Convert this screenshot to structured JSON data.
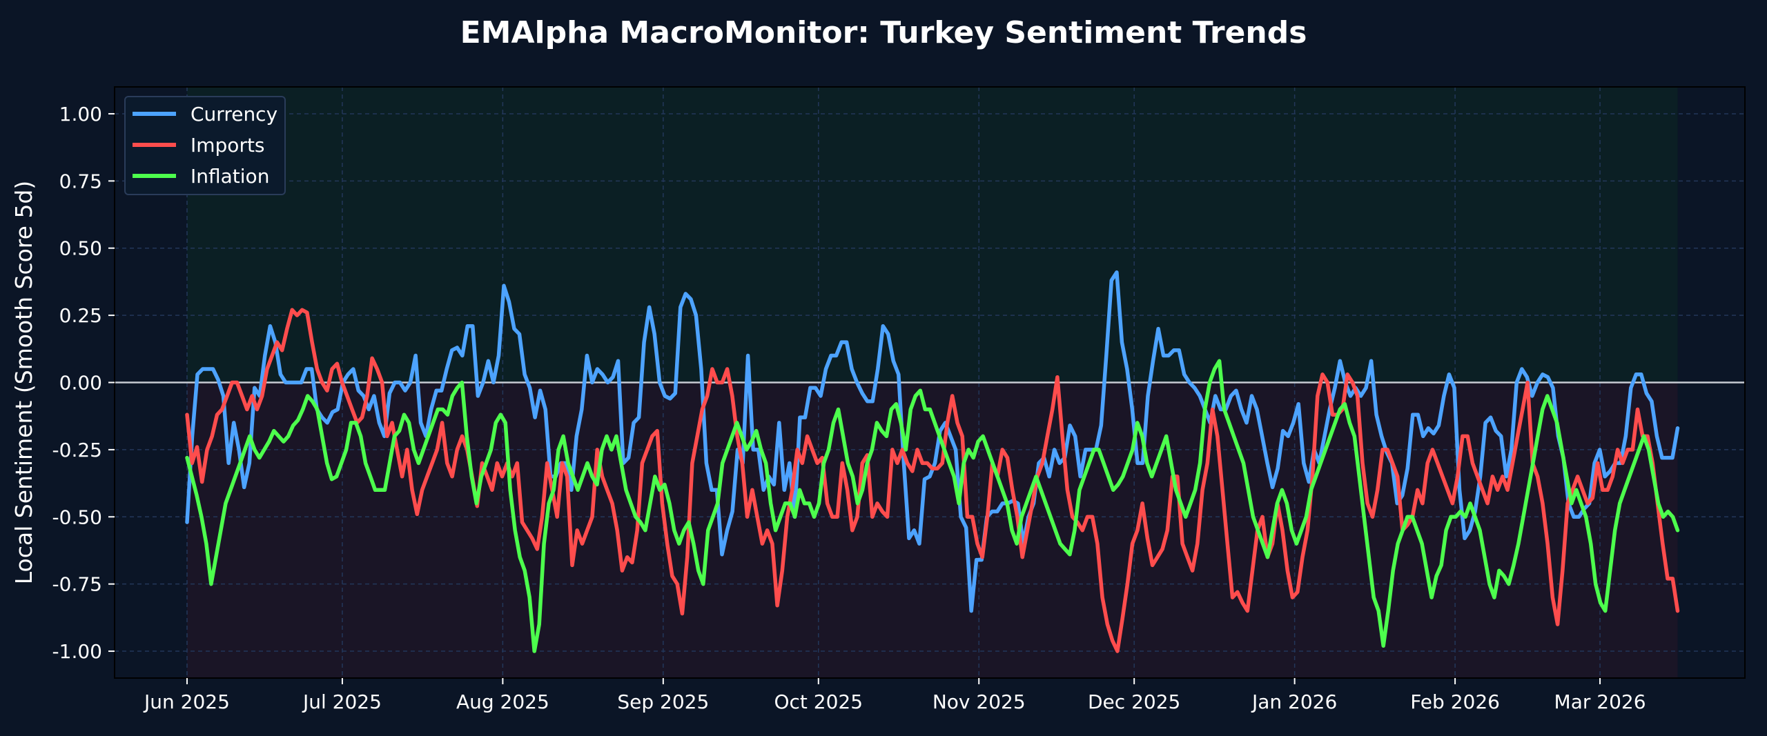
{
  "chart_data": {
    "type": "line",
    "title": "EMAlpha MacroMonitor: Turkey Sentiment Trends",
    "xlabel": "",
    "ylabel": "Local Sentiment (Smooth Score 5d)",
    "ylim": [
      -1.1,
      1.1
    ],
    "xlim": [
      "2025-05-18",
      "2026-03-29"
    ],
    "x_start": "2025-06-01",
    "x_end": "2026-03-16",
    "y_ticks": [
      "1.00",
      "0.75",
      "0.50",
      "0.25",
      "0.00",
      "-0.25",
      "-0.50",
      "-0.75",
      "-1.00"
    ],
    "y_tick_values": [
      1.0,
      0.75,
      0.5,
      0.25,
      0.0,
      -0.25,
      -0.5,
      -0.75,
      -1.0
    ],
    "x_tick_labels": [
      "Jun 2025",
      "Jul 2025",
      "Aug 2025",
      "Sep 2025",
      "Oct 2025",
      "Nov 2025",
      "Dec 2025",
      "Jan 2026",
      "Feb 2026",
      "Mar 2026"
    ],
    "x_tick_dates": [
      "2025-06-01",
      "2025-07-01",
      "2025-08-01",
      "2025-09-01",
      "2025-10-01",
      "2025-11-01",
      "2025-12-01",
      "2026-01-01",
      "2026-02-01",
      "2026-03-01"
    ],
    "grid": true,
    "legend_position": "top-left",
    "zero_line": true,
    "series": [
      {
        "name": "Currency",
        "color": "#4da3ff",
        "values": [
          -0.52,
          -0.2,
          0.03,
          0.05,
          0.05,
          0.05,
          0.01,
          -0.05,
          -0.3,
          -0.15,
          -0.25,
          -0.39,
          -0.3,
          -0.02,
          -0.05,
          0.1,
          0.21,
          0.15,
          0.03,
          0.0,
          0.0,
          0.0,
          0.0,
          0.05,
          0.05,
          -0.1,
          -0.13,
          -0.15,
          -0.11,
          -0.1,
          0.0,
          0.03,
          0.05,
          -0.03,
          -0.05,
          -0.1,
          -0.05,
          -0.15,
          -0.2,
          -0.04,
          0.0,
          0.0,
          -0.03,
          0.0,
          0.1,
          -0.15,
          -0.2,
          -0.1,
          -0.03,
          -0.03,
          0.05,
          0.12,
          0.13,
          0.1,
          0.21,
          0.21,
          -0.05,
          0.0,
          0.08,
          0.0,
          0.1,
          0.36,
          0.3,
          0.2,
          0.18,
          0.03,
          -0.02,
          -0.13,
          -0.03,
          -0.1,
          -0.35,
          -0.35,
          -0.3,
          -0.3,
          -0.4,
          -0.2,
          -0.1,
          0.1,
          0.0,
          0.05,
          0.03,
          0.0,
          0.02,
          0.08,
          -0.3,
          -0.28,
          -0.15,
          -0.13,
          0.15,
          0.28,
          0.18,
          0.0,
          -0.05,
          -0.06,
          -0.04,
          0.28,
          0.33,
          0.31,
          0.25,
          0.05,
          -0.3,
          -0.4,
          -0.4,
          -0.64,
          -0.55,
          -0.48,
          -0.25,
          -0.3,
          0.1,
          -0.25,
          -0.25,
          -0.4,
          -0.35,
          -0.38,
          -0.15,
          -0.4,
          -0.3,
          -0.5,
          -0.13,
          -0.13,
          -0.02,
          -0.02,
          -0.05,
          0.05,
          0.1,
          0.1,
          0.15,
          0.15,
          0.05,
          0.0,
          -0.04,
          -0.07,
          -0.07,
          0.05,
          0.21,
          0.18,
          0.08,
          0.03,
          -0.3,
          -0.58,
          -0.55,
          -0.6,
          -0.36,
          -0.35,
          -0.3,
          -0.18,
          -0.15,
          -0.2,
          -0.25,
          -0.5,
          -0.54,
          -0.85,
          -0.66,
          -0.66,
          -0.5,
          -0.48,
          -0.48,
          -0.45,
          -0.45,
          -0.44,
          -0.45,
          -0.6,
          -0.5,
          -0.45,
          -0.3,
          -0.28,
          -0.35,
          -0.25,
          -0.3,
          -0.28,
          -0.16,
          -0.2,
          -0.35,
          -0.25,
          -0.25,
          -0.25,
          -0.16,
          0.1,
          0.38,
          0.41,
          0.15,
          0.05,
          -0.1,
          -0.3,
          -0.3,
          -0.05,
          0.08,
          0.2,
          0.1,
          0.1,
          0.12,
          0.12,
          0.03,
          0.0,
          -0.02,
          -0.05,
          -0.1,
          -0.15,
          -0.05,
          -0.1,
          -0.1,
          -0.05,
          -0.03,
          -0.1,
          -0.15,
          -0.05,
          -0.1,
          -0.2,
          -0.3,
          -0.39,
          -0.32,
          -0.18,
          -0.2,
          -0.15,
          -0.08,
          -0.3,
          -0.37,
          -0.25,
          -0.3,
          -0.2,
          -0.1,
          -0.02,
          0.08,
          0.0,
          -0.05,
          -0.02,
          -0.05,
          -0.02,
          0.08,
          -0.12,
          -0.2,
          -0.26,
          -0.3,
          -0.45,
          -0.42,
          -0.32,
          -0.12,
          -0.12,
          -0.2,
          -0.17,
          -0.19,
          -0.16,
          -0.05,
          0.03,
          -0.02,
          -0.4,
          -0.58,
          -0.55,
          -0.48,
          -0.35,
          -0.15,
          -0.13,
          -0.18,
          -0.2,
          -0.35,
          -0.25,
          0.0,
          0.05,
          0.02,
          -0.05,
          0.0,
          0.03,
          0.02,
          -0.02,
          -0.2,
          -0.28,
          -0.45,
          -0.5,
          -0.5,
          -0.47,
          -0.45,
          -0.3,
          -0.25,
          -0.35,
          -0.33,
          -0.3,
          -0.3,
          -0.2,
          -0.02,
          0.03,
          0.03,
          -0.04,
          -0.07,
          -0.2,
          -0.28,
          -0.28,
          -0.28,
          -0.17
        ]
      },
      {
        "name": "Imports",
        "color": "#ff4d4d",
        "values": [
          -0.12,
          -0.3,
          -0.24,
          -0.37,
          -0.25,
          -0.2,
          -0.12,
          -0.1,
          -0.05,
          0.0,
          0.0,
          -0.05,
          -0.1,
          -0.05,
          -0.1,
          -0.05,
          0.05,
          0.1,
          0.15,
          0.12,
          0.2,
          0.27,
          0.25,
          0.27,
          0.26,
          0.15,
          0.05,
          0.0,
          -0.03,
          0.05,
          0.07,
          0.0,
          -0.05,
          -0.1,
          -0.15,
          -0.13,
          -0.05,
          0.09,
          0.05,
          0.0,
          -0.2,
          -0.15,
          -0.25,
          -0.35,
          -0.25,
          -0.4,
          -0.49,
          -0.4,
          -0.35,
          -0.3,
          -0.25,
          -0.15,
          -0.3,
          -0.35,
          -0.25,
          -0.2,
          -0.25,
          -0.35,
          -0.46,
          -0.3,
          -0.35,
          -0.4,
          -0.3,
          -0.35,
          -0.3,
          -0.35,
          -0.3,
          -0.52,
          -0.55,
          -0.58,
          -0.62,
          -0.5,
          -0.3,
          -0.4,
          -0.5,
          -0.3,
          -0.35,
          -0.68,
          -0.55,
          -0.6,
          -0.55,
          -0.5,
          -0.25,
          -0.35,
          -0.4,
          -0.45,
          -0.55,
          -0.7,
          -0.65,
          -0.67,
          -0.55,
          -0.3,
          -0.25,
          -0.2,
          -0.18,
          -0.45,
          -0.6,
          -0.72,
          -0.75,
          -0.86,
          -0.65,
          -0.3,
          -0.2,
          -0.1,
          -0.05,
          0.05,
          0.0,
          0.0,
          0.05,
          -0.05,
          -0.2,
          -0.3,
          -0.5,
          -0.4,
          -0.5,
          -0.6,
          -0.55,
          -0.6,
          -0.83,
          -0.7,
          -0.5,
          -0.4,
          -0.25,
          -0.3,
          -0.2,
          -0.25,
          -0.3,
          -0.28,
          -0.45,
          -0.5,
          -0.5,
          -0.3,
          -0.4,
          -0.55,
          -0.5,
          -0.3,
          -0.27,
          -0.5,
          -0.45,
          -0.48,
          -0.5,
          -0.25,
          -0.3,
          -0.25,
          -0.3,
          -0.33,
          -0.25,
          -0.3,
          -0.3,
          -0.32,
          -0.32,
          -0.3,
          -0.15,
          -0.05,
          -0.15,
          -0.2,
          -0.5,
          -0.5,
          -0.6,
          -0.65,
          -0.5,
          -0.3,
          -0.35,
          -0.25,
          -0.28,
          -0.4,
          -0.5,
          -0.65,
          -0.55,
          -0.45,
          -0.35,
          -0.3,
          -0.2,
          -0.1,
          0.02,
          -0.2,
          -0.4,
          -0.5,
          -0.52,
          -0.55,
          -0.5,
          -0.5,
          -0.6,
          -0.8,
          -0.9,
          -0.96,
          -1.0,
          -0.88,
          -0.75,
          -0.6,
          -0.55,
          -0.45,
          -0.58,
          -0.68,
          -0.65,
          -0.62,
          -0.55,
          -0.35,
          -0.35,
          -0.6,
          -0.65,
          -0.7,
          -0.6,
          -0.4,
          -0.3,
          -0.1,
          -0.2,
          -0.4,
          -0.6,
          -0.8,
          -0.78,
          -0.82,
          -0.85,
          -0.7,
          -0.55,
          -0.5,
          -0.65,
          -0.6,
          -0.45,
          -0.55,
          -0.7,
          -0.8,
          -0.78,
          -0.65,
          -0.55,
          -0.35,
          -0.05,
          0.03,
          0.0,
          -0.12,
          -0.12,
          -0.1,
          0.03,
          0.0,
          -0.05,
          -0.3,
          -0.45,
          -0.5,
          -0.4,
          -0.25,
          -0.25,
          -0.3,
          -0.35,
          -0.55,
          -0.53,
          -0.5,
          -0.4,
          -0.45,
          -0.3,
          -0.25,
          -0.3,
          -0.35,
          -0.4,
          -0.45,
          -0.35,
          -0.2,
          -0.2,
          -0.3,
          -0.35,
          -0.4,
          -0.45,
          -0.35,
          -0.4,
          -0.35,
          -0.4,
          -0.3,
          -0.2,
          -0.1,
          0.0,
          -0.3,
          -0.35,
          -0.45,
          -0.6,
          -0.8,
          -0.9,
          -0.7,
          -0.45,
          -0.4,
          -0.35,
          -0.4,
          -0.45,
          -0.43,
          -0.3,
          -0.4,
          -0.4,
          -0.35,
          -0.25,
          -0.3,
          -0.25,
          -0.25,
          -0.1,
          -0.2,
          -0.2,
          -0.3,
          -0.45,
          -0.6,
          -0.73,
          -0.73,
          -0.85
        ]
      },
      {
        "name": "Inflation",
        "color": "#4dff4d",
        "values": [
          -0.28,
          -0.35,
          -0.42,
          -0.5,
          -0.6,
          -0.75,
          -0.65,
          -0.55,
          -0.45,
          -0.4,
          -0.35,
          -0.3,
          -0.25,
          -0.2,
          -0.25,
          -0.28,
          -0.25,
          -0.22,
          -0.18,
          -0.2,
          -0.22,
          -0.2,
          -0.16,
          -0.14,
          -0.1,
          -0.05,
          -0.07,
          -0.1,
          -0.2,
          -0.3,
          -0.36,
          -0.35,
          -0.3,
          -0.25,
          -0.15,
          -0.15,
          -0.2,
          -0.3,
          -0.35,
          -0.4,
          -0.4,
          -0.4,
          -0.3,
          -0.2,
          -0.18,
          -0.12,
          -0.15,
          -0.25,
          -0.3,
          -0.25,
          -0.2,
          -0.15,
          -0.1,
          -0.1,
          -0.12,
          -0.05,
          -0.02,
          0.0,
          -0.2,
          -0.35,
          -0.45,
          -0.35,
          -0.3,
          -0.25,
          -0.15,
          -0.12,
          -0.15,
          -0.4,
          -0.55,
          -0.65,
          -0.7,
          -0.8,
          -1.0,
          -0.9,
          -0.6,
          -0.45,
          -0.4,
          -0.25,
          -0.2,
          -0.3,
          -0.35,
          -0.4,
          -0.35,
          -0.3,
          -0.35,
          -0.38,
          -0.25,
          -0.2,
          -0.25,
          -0.2,
          -0.3,
          -0.4,
          -0.45,
          -0.5,
          -0.52,
          -0.55,
          -0.45,
          -0.35,
          -0.4,
          -0.38,
          -0.45,
          -0.55,
          -0.6,
          -0.55,
          -0.52,
          -0.6,
          -0.7,
          -0.75,
          -0.55,
          -0.5,
          -0.45,
          -0.3,
          -0.25,
          -0.2,
          -0.15,
          -0.2,
          -0.25,
          -0.22,
          -0.18,
          -0.25,
          -0.3,
          -0.45,
          -0.55,
          -0.5,
          -0.45,
          -0.45,
          -0.5,
          -0.4,
          -0.45,
          -0.45,
          -0.5,
          -0.45,
          -0.3,
          -0.25,
          -0.15,
          -0.1,
          -0.2,
          -0.3,
          -0.35,
          -0.45,
          -0.4,
          -0.3,
          -0.25,
          -0.15,
          -0.18,
          -0.2,
          -0.1,
          -0.08,
          -0.15,
          -0.25,
          -0.1,
          -0.05,
          -0.03,
          -0.1,
          -0.1,
          -0.15,
          -0.2,
          -0.25,
          -0.3,
          -0.35,
          -0.45,
          -0.3,
          -0.25,
          -0.28,
          -0.22,
          -0.2,
          -0.25,
          -0.3,
          -0.35,
          -0.4,
          -0.45,
          -0.55,
          -0.6,
          -0.5,
          -0.45,
          -0.4,
          -0.35,
          -0.4,
          -0.45,
          -0.5,
          -0.55,
          -0.6,
          -0.62,
          -0.64,
          -0.55,
          -0.4,
          -0.35,
          -0.3,
          -0.25,
          -0.25,
          -0.3,
          -0.35,
          -0.4,
          -0.38,
          -0.35,
          -0.3,
          -0.25,
          -0.15,
          -0.2,
          -0.3,
          -0.35,
          -0.3,
          -0.25,
          -0.2,
          -0.3,
          -0.4,
          -0.45,
          -0.5,
          -0.45,
          -0.4,
          -0.3,
          -0.1,
          0.0,
          0.05,
          0.08,
          -0.1,
          -0.15,
          -0.2,
          -0.25,
          -0.3,
          -0.4,
          -0.5,
          -0.55,
          -0.6,
          -0.65,
          -0.55,
          -0.45,
          -0.4,
          -0.45,
          -0.55,
          -0.6,
          -0.55,
          -0.5,
          -0.4,
          -0.35,
          -0.3,
          -0.25,
          -0.2,
          -0.15,
          -0.1,
          -0.08,
          -0.15,
          -0.2,
          -0.35,
          -0.5,
          -0.65,
          -0.8,
          -0.85,
          -0.98,
          -0.85,
          -0.7,
          -0.6,
          -0.55,
          -0.5,
          -0.5,
          -0.55,
          -0.6,
          -0.7,
          -0.8,
          -0.72,
          -0.68,
          -0.55,
          -0.5,
          -0.5,
          -0.48,
          -0.5,
          -0.45,
          -0.5,
          -0.55,
          -0.65,
          -0.75,
          -0.8,
          -0.7,
          -0.72,
          -0.75,
          -0.68,
          -0.6,
          -0.5,
          -0.4,
          -0.3,
          -0.2,
          -0.1,
          -0.05,
          -0.1,
          -0.15,
          -0.25,
          -0.35,
          -0.45,
          -0.4,
          -0.45,
          -0.5,
          -0.6,
          -0.75,
          -0.82,
          -0.85,
          -0.7,
          -0.55,
          -0.45,
          -0.4,
          -0.35,
          -0.3,
          -0.25,
          -0.2,
          -0.25,
          -0.35,
          -0.45,
          -0.5,
          -0.48,
          -0.5,
          -0.55
        ]
      }
    ]
  }
}
